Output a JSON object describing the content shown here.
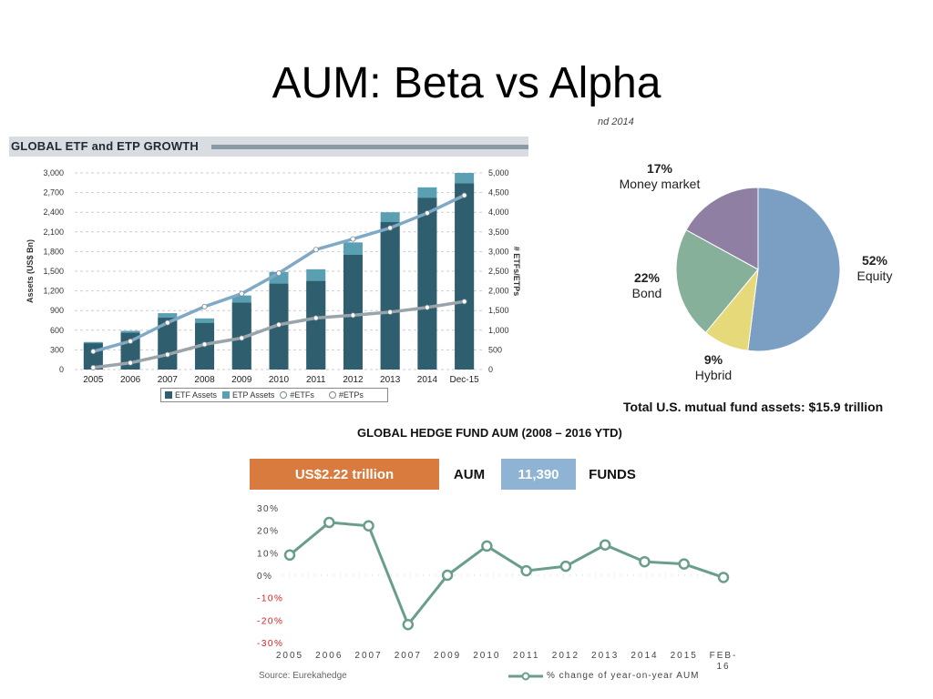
{
  "slide": {
    "title": "AUM: Beta vs Alpha"
  },
  "etf": {
    "banner_title": "GLOBAL ETF and ETP GROWTH",
    "left_axis_label": "Assets (US$ Bn)",
    "right_axis_label": "# ETFs/ETPs",
    "legend": {
      "etf_assets": "ETF Assets",
      "etp_assets": "ETP Assets",
      "n_etfs": "#ETFs",
      "n_etps": "#ETPs"
    },
    "colors": {
      "etf_bar": "#2f5e6f",
      "etp_bar": "#5b9fb3",
      "etf_line": "#7fa9c4",
      "etp_line": "#9aa4ab"
    }
  },
  "pie": {
    "header_fragment": "nd 2014",
    "footer": "Total U.S. mutual fund assets: $15.9 trillion",
    "slices": [
      {
        "pct": "52%",
        "label": "Equity",
        "color": "#7b9ec3"
      },
      {
        "pct": "9%",
        "label": "Hybrid",
        "color": "#e6d97a"
      },
      {
        "pct": "22%",
        "label": "Bond",
        "color": "#86b099"
      },
      {
        "pct": "17%",
        "label": "Money market",
        "color": "#8f7fa3"
      }
    ]
  },
  "hedge": {
    "title": "GLOBAL HEDGE FUND AUM (2008 – 2016 YTD)",
    "aum_value": "US$2.22 trillion",
    "aum_label": "AUM",
    "funds_value": "11,390",
    "funds_label": "FUNDS",
    "source": "Source: Eurekahedge",
    "legend": "% change of year-on-year AUM",
    "colors": {
      "aum_box": "#d97a3f",
      "funds_box": "#8fb3d3",
      "line": "#6a9e8a",
      "negative_tick": "#d12020"
    }
  },
  "chart_data": [
    {
      "type": "bar",
      "title": "GLOBAL ETF and ETP GROWTH",
      "categories": [
        "2005",
        "2006",
        "2007",
        "2008",
        "2009",
        "2010",
        "2011",
        "2012",
        "2013",
        "2014",
        "Dec-15"
      ],
      "ylabel": "Assets (US$ Bn)",
      "ylim": [
        0,
        3000
      ],
      "yticks": [
        "0",
        "300",
        "600",
        "900",
        "1,200",
        "1,500",
        "1,800",
        "2,100",
        "2,400",
        "2,700",
        "3,000"
      ],
      "y2label": "# ETFs/ETPs",
      "y2lim": [
        0,
        5000
      ],
      "y2ticks": [
        "0",
        "500",
        "1,000",
        "1,500",
        "2,000",
        "2,500",
        "3,000",
        "3,500",
        "4,000",
        "4,500",
        "5,000"
      ],
      "series": [
        {
          "name": "ETF Assets",
          "kind": "bar",
          "axis": "left",
          "values": [
            400,
            560,
            790,
            710,
            1020,
            1310,
            1350,
            1750,
            2250,
            2620,
            2840
          ]
        },
        {
          "name": "ETP Assets",
          "kind": "bar",
          "axis": "left",
          "values": [
            420,
            590,
            860,
            780,
            1130,
            1490,
            1530,
            1940,
            2400,
            2780,
            3000
          ]
        },
        {
          "name": "#ETFs",
          "kind": "line",
          "axis": "right",
          "values": [
            460,
            720,
            1190,
            1600,
            1930,
            2450,
            3050,
            3320,
            3600,
            3980,
            4430
          ]
        },
        {
          "name": "#ETPs",
          "kind": "line",
          "axis": "right",
          "values": [
            50,
            170,
            380,
            640,
            800,
            1140,
            1310,
            1380,
            1460,
            1580,
            1730
          ]
        }
      ],
      "legend": "bottom",
      "grid": true
    },
    {
      "type": "pie",
      "categories": [
        "Equity",
        "Hybrid",
        "Bond",
        "Money market"
      ],
      "values": [
        52,
        9,
        22,
        17
      ]
    },
    {
      "type": "line",
      "title": "GLOBAL HEDGE FUND AUM (2008 – 2016 YTD)",
      "x": [
        "2005",
        "2006",
        "2007",
        "2007",
        "2009",
        "2010",
        "2011",
        "2012",
        "2013",
        "2014",
        "2015",
        "FEB-16"
      ],
      "series": [
        {
          "name": "% change of year-on-year AUM",
          "values": [
            9,
            23.5,
            22,
            -22,
            0,
            13,
            2,
            4,
            13.5,
            6,
            5,
            -1
          ]
        }
      ],
      "ylim": [
        -30,
        30
      ],
      "yticks": [
        "30%",
        "20%",
        "10%",
        "0%",
        "-10%",
        "-20%",
        "-30%"
      ],
      "legend": "bottom-right",
      "grid": false
    }
  ]
}
